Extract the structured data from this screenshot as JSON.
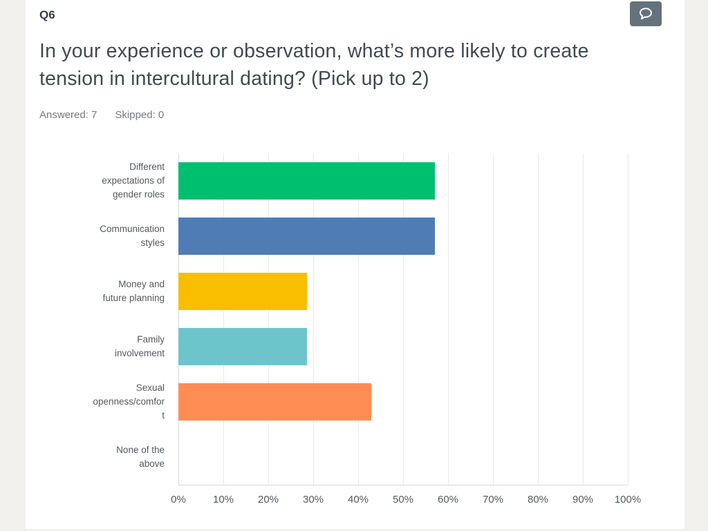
{
  "window": {
    "background_color": "#F1F0ED",
    "card_color": "#FFFFFF"
  },
  "header": {
    "question_number": "Q6",
    "question_title": "In your experience or observation, what’s more likely to create tension in intercultural dating? (Pick up to 2)",
    "answered_label": "Answered: 7",
    "skipped_label": "Skipped: 0",
    "comment_button_color": "#64727C"
  },
  "chart_data": {
    "type": "bar",
    "orientation": "horizontal",
    "answered": 7,
    "skipped": 0,
    "categories": [
      "Different expectations of gender roles",
      "Communication styles",
      "Money and future planning",
      "Family involvement",
      "Sexual openness/comfort",
      "None of the above"
    ],
    "label_lines": [
      [
        "Different",
        "expectations of",
        "gender roles"
      ],
      [
        "Communication",
        "styles"
      ],
      [
        "Money and",
        "future planning"
      ],
      [
        "Family",
        "involvement"
      ],
      [
        "Sexual",
        "openness/comfor",
        "t"
      ],
      [
        "None of the",
        "above"
      ]
    ],
    "values": [
      57.14,
      57.14,
      28.57,
      28.57,
      42.86,
      0
    ],
    "bar_colors": [
      "#00BF6F",
      "#507CB6",
      "#F9BE00",
      "#6DC5CC",
      "#FF8C52",
      null
    ],
    "x_ticks": [
      "0%",
      "10%",
      "20%",
      "30%",
      "40%",
      "50%",
      "60%",
      "70%",
      "80%",
      "90%",
      "100%"
    ],
    "xlim": [
      0,
      100
    ],
    "grid": true,
    "legend": false,
    "xlabel": "",
    "ylabel": ""
  }
}
